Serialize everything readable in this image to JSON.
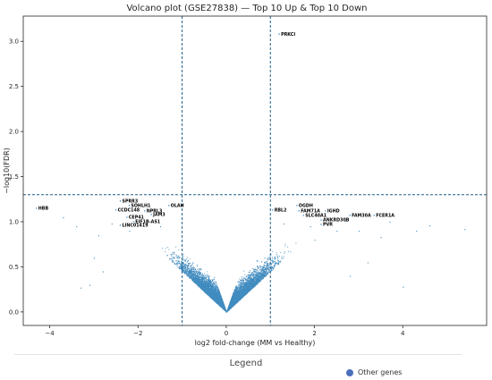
{
  "chart_data": {
    "type": "scatter",
    "title": "Volcano plot (GSE27838) — Top 10 Up & Top 10 Down",
    "xlabel": "log2 fold-change (MM vs Healthy)",
    "ylabel": "−log10(FDR)",
    "xlim": [
      -4.6,
      5.9
    ],
    "ylim": [
      -0.15,
      3.28
    ],
    "xticks": [
      -4,
      -2,
      0,
      2,
      4
    ],
    "yticks": [
      0.0,
      0.5,
      1.0,
      1.5,
      2.0,
      2.5,
      3.0
    ],
    "xtick_labels": [
      "−4",
      "−2",
      "0",
      "2",
      "4"
    ],
    "ytick_labels": [
      "0.0",
      "0.5",
      "1.0",
      "1.5",
      "2.0",
      "2.5",
      "3.0"
    ],
    "thresholds": {
      "fc_neg": -1,
      "fc_pos": 1,
      "fdr_line": 1.3
    },
    "series_color": "#1f77b4",
    "threshold_color": "#1f5f8b",
    "labeled_genes": [
      {
        "name": "PRKCI",
        "x": 1.2,
        "y": 3.08
      },
      {
        "name": "HBB",
        "x": -4.3,
        "y": 1.15
      },
      {
        "name": "SPRR3",
        "x": -2.4,
        "y": 1.23
      },
      {
        "name": "SOHLH1",
        "x": -2.2,
        "y": 1.18
      },
      {
        "name": "CCDC148",
        "x": -2.5,
        "y": 1.13
      },
      {
        "name": "NPRL3",
        "x": -1.85,
        "y": 1.12
      },
      {
        "name": "OLAH",
        "x": -1.3,
        "y": 1.18
      },
      {
        "name": "JAM3",
        "x": -1.7,
        "y": 1.08
      },
      {
        "name": "CEP41",
        "x": -2.25,
        "y": 1.05
      },
      {
        "name": "EIF1B-AS1",
        "x": -2.1,
        "y": 1.0
      },
      {
        "name": "LINC01419",
        "x": -2.4,
        "y": 0.96
      },
      {
        "name": "RBL2",
        "x": 1.05,
        "y": 1.13
      },
      {
        "name": "OGDH",
        "x": 1.6,
        "y": 1.18
      },
      {
        "name": "FAM71A",
        "x": 1.65,
        "y": 1.12
      },
      {
        "name": "IGHD",
        "x": 2.25,
        "y": 1.12
      },
      {
        "name": "SLC40A1",
        "x": 1.75,
        "y": 1.07
      },
      {
        "name": "FAM30A",
        "x": 2.8,
        "y": 1.07
      },
      {
        "name": "FCER1A",
        "x": 3.35,
        "y": 1.07
      },
      {
        "name": "ANKRD30B",
        "x": 2.15,
        "y": 1.02
      },
      {
        "name": "PVR",
        "x": 2.15,
        "y": 0.97
      }
    ],
    "legend": {
      "title": "Legend",
      "entries": [
        {
          "label": "Other genes",
          "color": "#4c6fbd"
        }
      ]
    }
  }
}
